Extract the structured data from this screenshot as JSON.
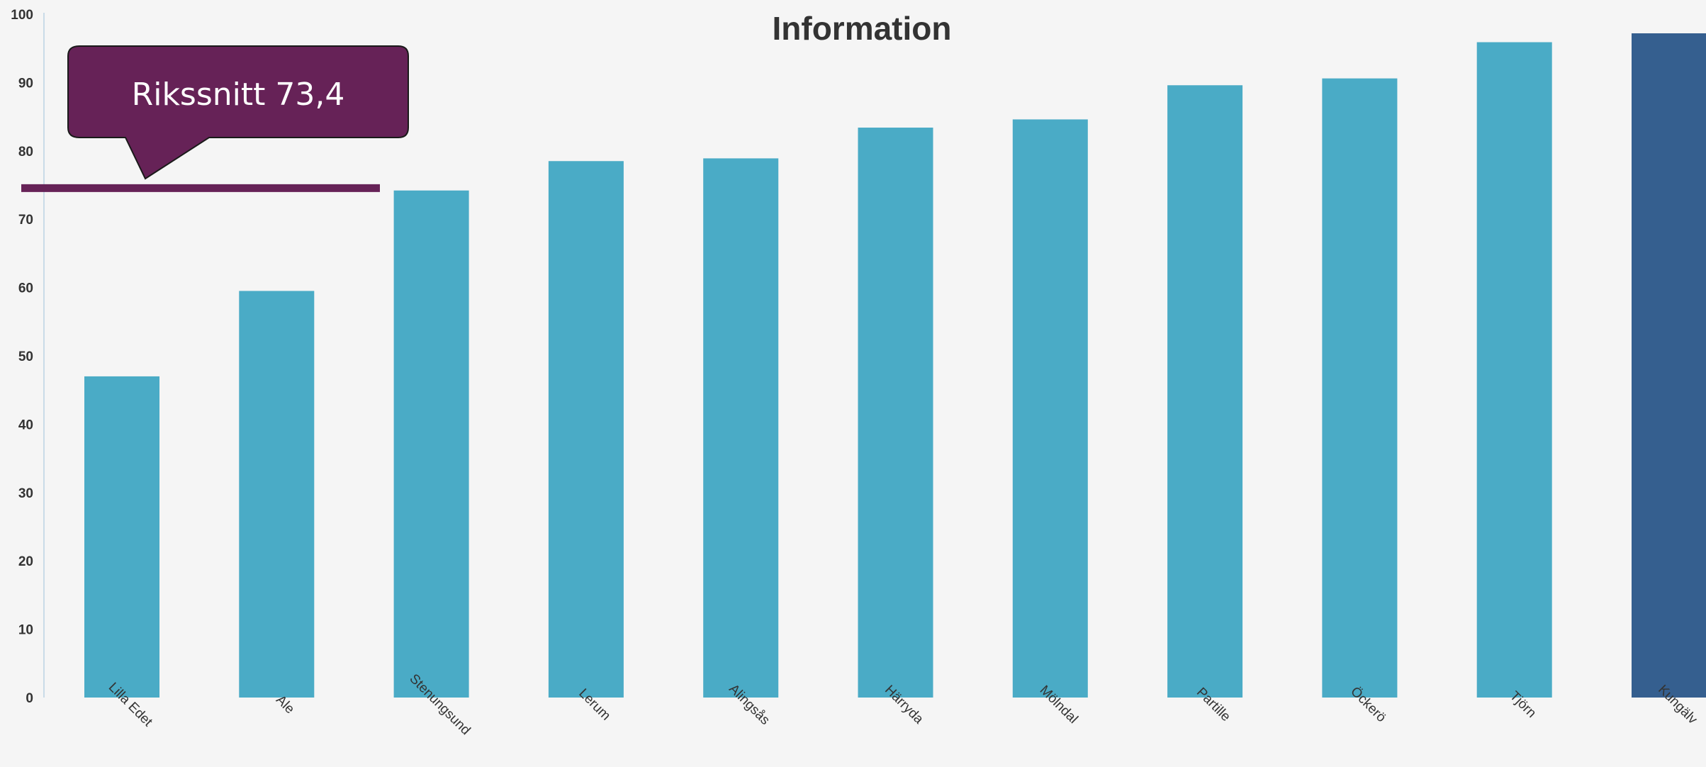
{
  "chart_data": {
    "type": "bar",
    "title": "Information",
    "xlabel": "",
    "ylabel": "",
    "ylim": [
      0,
      100
    ],
    "yticks": [
      0,
      10,
      20,
      30,
      40,
      50,
      60,
      70,
      80,
      90,
      100
    ],
    "grid": false,
    "categories": [
      "Lilla Edet",
      "Ale",
      "Stenungsund",
      "Lerum",
      "Alingsås",
      "Härryda",
      "Mölndal",
      "Partille",
      "Öckerö",
      "Tjörn",
      "Kungälv"
    ],
    "values": [
      47.0,
      59.5,
      74.2,
      78.5,
      78.9,
      83.4,
      84.6,
      89.6,
      90.6,
      95.9,
      97.2
    ],
    "highlight_category": "Kungälv",
    "reference_line": {
      "value": 73.4,
      "label": "Rikssnitt 73,4"
    },
    "colors": {
      "bar": "#4aabc6",
      "highlight_bar": "#355f8f",
      "reference": "#662257",
      "axis": "#c9dbe8",
      "text": "#333333",
      "background": "#f5f5f5"
    }
  }
}
